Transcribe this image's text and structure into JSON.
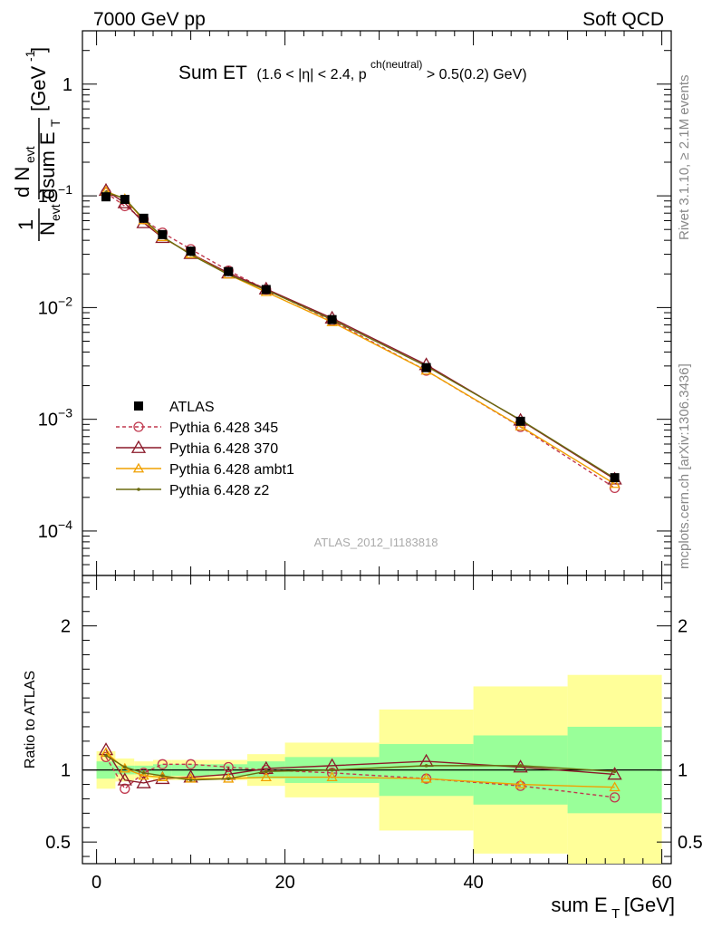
{
  "header": {
    "left": "7000 GeV pp",
    "right": "Soft QCD"
  },
  "title": {
    "main": "Sum ET",
    "cond_1": "(1.6 < |η| < 2.4, p",
    "cond_sup": "ch(neutral)",
    "cond_2": " > 0.5(0.2) GeV)"
  },
  "side_labels": {
    "rivet": "Rivet 3.1.10, ≥ 2.1M events",
    "mcplots": "mcplots.cern.ch [arXiv:1306.3436]"
  },
  "watermark": "ATLAS_2012_I1183818",
  "ylabel_top": {
    "frac1_num": "1",
    "frac1_den": "N",
    "frac1_den_sub": "evt",
    "frac2_num": "d N",
    "frac2_num_sub": "evt",
    "frac2_den": "dsum E",
    "frac2_den_sub": "T",
    "unit": "[GeV",
    "unit_sup": "-1",
    "unit_end": "]"
  },
  "ylabel_bottom": "Ratio to ATLAS",
  "xlabel": {
    "main": "sum E",
    "sub": "T",
    "unit": " [GeV]"
  },
  "chart_data": {
    "type": "line",
    "x_axis": {
      "range": [
        -1.5,
        61
      ],
      "ticks": [
        {
          "v": 0,
          "label": "0"
        },
        {
          "v": 20,
          "label": "20"
        },
        {
          "v": 40,
          "label": "40"
        },
        {
          "v": 60,
          "label": "60"
        }
      ],
      "minor_step": 2,
      "major_step": 10
    },
    "main": {
      "y_scale": "log",
      "y_range": [
        4e-05,
        3
      ],
      "y_ticks": [
        {
          "v": 1,
          "base": "1",
          "exp": ""
        },
        {
          "v": 0.1,
          "base": "10",
          "exp": "−1"
        },
        {
          "v": 0.01,
          "base": "10",
          "exp": "−2"
        },
        {
          "v": 0.001,
          "base": "10",
          "exp": "−3"
        },
        {
          "v": 0.0001,
          "base": "10",
          "exp": "−4"
        }
      ]
    },
    "ratio": {
      "y_scale": "linear",
      "y_range": [
        0.35,
        2.35
      ],
      "y_ticks": [
        {
          "v": 0.5,
          "label": "0.5"
        },
        {
          "v": 1,
          "label": "1"
        },
        {
          "v": 2,
          "label": "2"
        }
      ],
      "minor_step": 0.1,
      "reference": 1
    },
    "x": [
      1,
      3,
      5,
      7,
      10,
      14,
      18,
      25,
      35,
      45,
      55
    ],
    "bin_edges": [
      0,
      2,
      4,
      6,
      8,
      12,
      16,
      20,
      30,
      40,
      50,
      60
    ],
    "data": {
      "name": "ATLAS",
      "color": "#000000",
      "values": [
        0.098,
        0.093,
        0.063,
        0.045,
        0.032,
        0.021,
        0.0145,
        0.0078,
        0.0029,
        0.00096,
        0.0003
      ],
      "band_inner": [
        [
          0.94,
          1.06
        ],
        [
          0.97,
          1.03
        ],
        [
          0.97,
          1.03
        ],
        [
          0.96,
          1.04
        ],
        [
          0.96,
          1.04
        ],
        [
          0.96,
          1.04
        ],
        [
          0.94,
          1.06
        ],
        [
          0.91,
          1.09
        ],
        [
          0.82,
          1.18
        ],
        [
          0.76,
          1.24
        ],
        [
          0.7,
          1.3
        ]
      ],
      "band_outer": [
        [
          0.87,
          1.13
        ],
        [
          0.92,
          1.08
        ],
        [
          0.94,
          1.06
        ],
        [
          0.93,
          1.07
        ],
        [
          0.93,
          1.07
        ],
        [
          0.93,
          1.07
        ],
        [
          0.89,
          1.11
        ],
        [
          0.81,
          1.19
        ],
        [
          0.58,
          1.42
        ],
        [
          0.42,
          1.58
        ],
        [
          0.34,
          1.66
        ]
      ],
      "inner_color": "#99ff99",
      "outer_color": "#ffff99"
    },
    "series": [
      {
        "name": "Pythia 6.428 345",
        "color": "#c0394e",
        "marker": "circle",
        "dashed": true,
        "ratio": [
          1.09,
          0.87,
          0.98,
          1.04,
          1.04,
          1.02,
          1.0,
          0.98,
          0.94,
          0.89,
          0.81
        ]
      },
      {
        "name": "Pythia 6.428 370",
        "color": "#8b1a2a",
        "marker": "triangle",
        "dashed": false,
        "ratio": [
          1.14,
          0.93,
          0.91,
          0.94,
          0.95,
          0.97,
          1.01,
          1.03,
          1.06,
          1.02,
          0.97
        ]
      },
      {
        "name": "Pythia 6.428 ambt1",
        "color": "#f0a000",
        "marker": "triangle-small",
        "dashed": false,
        "ratio": [
          1.12,
          1.01,
          0.96,
          0.95,
          0.94,
          0.94,
          0.95,
          0.95,
          0.94,
          0.9,
          0.88
        ]
      },
      {
        "name": "Pythia 6.428 z2",
        "color": "#6b6b10",
        "marker": "dot",
        "dashed": false,
        "ratio": [
          1.1,
          1.02,
          0.98,
          0.96,
          0.93,
          0.94,
          0.99,
          1.0,
          1.03,
          1.03,
          0.99
        ]
      }
    ]
  }
}
